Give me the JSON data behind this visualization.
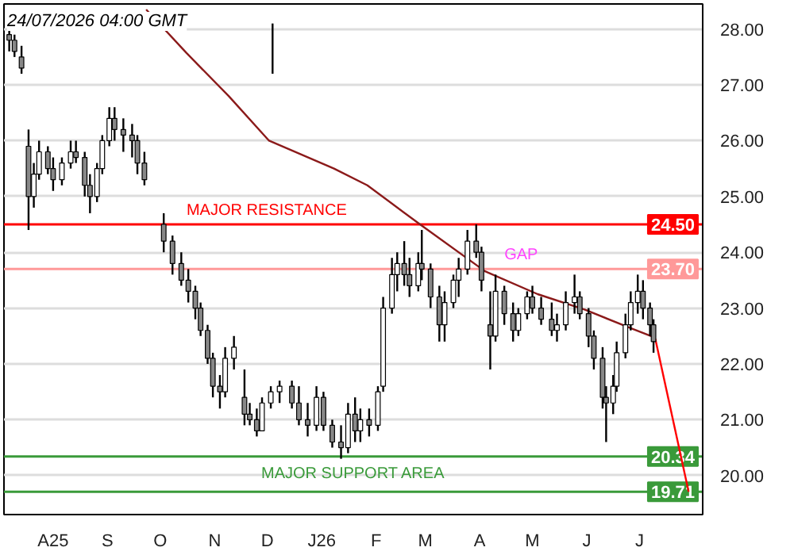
{
  "chart_data": {
    "type": "candlestick",
    "annotations": [
      "24/07/2026 04:00 GMT",
      {
        "text": "MAJOR RESISTANCE",
        "x": "2025-10-30",
        "y": 24.5
      },
      {
        "text": "GAP",
        "x": "2026-04-29",
        "y": 23.7
      },
      "MAJOR SUPPORT AREA"
    ],
    "x": [
      "2025-07-21",
      "2025-07-24",
      "2025-07-28",
      "2025-08-01",
      "2025-08-04",
      "2025-08-07",
      "2025-08-12",
      "2025-08-15",
      "2025-08-20",
      "2025-08-25",
      "2025-08-28",
      "2025-09-02",
      "2025-09-05",
      "2025-09-09",
      "2025-09-12",
      "2025-09-16",
      "2025-09-19",
      "2025-09-24",
      "2025-09-29",
      "2025-10-02",
      "2025-10-06",
      "2025-10-17",
      "2025-10-22",
      "2025-10-27",
      "2025-10-31",
      "2025-11-04",
      "2025-11-07",
      "2025-11-11",
      "2025-11-14",
      "2025-11-18",
      "2025-11-21",
      "2025-11-26",
      "2025-12-02",
      "2025-12-05",
      "2025-12-09",
      "2025-12-12",
      "2025-12-17",
      "2025-12-22",
      "2025-12-29",
      "2026-01-02",
      "2026-01-07",
      "2026-01-12",
      "2026-01-16",
      "2026-01-21",
      "2026-01-26",
      "2026-01-30",
      "2026-02-03",
      "2026-02-06",
      "2026-02-11",
      "2026-02-16",
      "2026-02-19",
      "2026-02-24",
      "2026-02-27",
      "2026-03-03",
      "2026-03-06",
      "2026-03-11",
      "2026-03-13",
      "2026-03-18",
      "2026-03-23",
      "2026-03-26",
      "2026-03-31",
      "2026-04-03",
      "2026-04-08",
      "2026-04-13",
      "2026-04-16",
      "2026-04-21",
      "2026-04-24",
      "2026-04-29",
      "2026-05-04",
      "2026-05-07",
      "2026-05-12",
      "2026-05-15",
      "2026-05-20",
      "2026-05-26",
      "2026-05-29",
      "2026-06-03",
      "2026-06-08",
      "2026-06-11",
      "2026-06-16",
      "2026-06-19",
      "2026-06-24",
      "2026-06-26",
      "2026-06-30",
      "2026-07-02",
      "2026-07-07",
      "2026-07-10",
      "2026-07-14",
      "2026-07-17",
      "2026-07-21",
      "2026-07-23"
    ],
    "ohlc": [
      [
        27.9,
        28.1,
        27.6,
        27.8
      ],
      [
        27.8,
        27.9,
        27.5,
        27.6
      ],
      [
        27.5,
        27.7,
        27.2,
        27.3
      ],
      [
        25.9,
        26.2,
        24.4,
        25.0
      ],
      [
        25.0,
        25.6,
        24.8,
        25.4
      ],
      [
        25.4,
        26.0,
        25.3,
        25.8
      ],
      [
        25.8,
        25.9,
        25.4,
        25.5
      ],
      [
        25.5,
        25.7,
        25.1,
        25.3
      ],
      [
        25.3,
        25.7,
        25.2,
        25.6
      ],
      [
        25.6,
        26.0,
        25.5,
        25.8
      ],
      [
        25.8,
        26.0,
        25.6,
        25.7
      ],
      [
        25.7,
        25.8,
        25.0,
        25.2
      ],
      [
        25.2,
        25.4,
        24.7,
        25.0
      ],
      [
        25.0,
        25.6,
        24.9,
        25.5
      ],
      [
        25.5,
        26.1,
        25.4,
        26.0
      ],
      [
        26.0,
        26.6,
        25.9,
        26.4
      ],
      [
        26.4,
        26.6,
        26.0,
        26.2
      ],
      [
        26.2,
        26.4,
        25.8,
        26.1
      ],
      [
        26.1,
        26.3,
        25.7,
        26.0
      ],
      [
        26.0,
        26.1,
        25.4,
        25.6
      ],
      [
        25.6,
        25.8,
        25.2,
        25.3
      ],
      [
        24.5,
        24.7,
        24.0,
        24.2
      ],
      [
        24.2,
        24.3,
        23.6,
        23.8
      ],
      [
        23.8,
        24.0,
        23.4,
        23.5
      ],
      [
        23.5,
        23.7,
        23.1,
        23.3
      ],
      [
        23.3,
        23.4,
        22.8,
        23.0
      ],
      [
        23.0,
        23.1,
        22.5,
        22.6
      ],
      [
        22.6,
        22.7,
        22.0,
        22.1
      ],
      [
        22.1,
        22.2,
        21.4,
        21.6
      ],
      [
        21.6,
        21.8,
        21.2,
        21.5
      ],
      [
        21.5,
        22.3,
        21.4,
        22.1
      ],
      [
        22.1,
        22.5,
        21.9,
        22.3
      ],
      [
        21.4,
        21.9,
        20.9,
        21.1
      ],
      [
        21.1,
        21.3,
        20.9,
        21.0
      ],
      [
        21.0,
        21.2,
        20.7,
        20.8
      ],
      [
        20.8,
        21.4,
        20.8,
        21.3
      ],
      [
        21.3,
        21.6,
        21.2,
        21.5
      ],
      [
        21.5,
        21.7,
        21.3,
        21.6
      ],
      [
        21.6,
        21.7,
        21.2,
        21.3
      ],
      [
        21.3,
        21.6,
        20.9,
        21.0
      ],
      [
        21.0,
        21.3,
        20.7,
        20.9
      ],
      [
        20.9,
        21.6,
        20.8,
        21.4
      ],
      [
        21.4,
        21.5,
        20.8,
        20.9
      ],
      [
        20.9,
        21.0,
        20.5,
        20.6
      ],
      [
        20.6,
        20.9,
        20.3,
        20.5
      ],
      [
        20.5,
        21.3,
        20.4,
        21.1
      ],
      [
        21.1,
        21.4,
        20.6,
        20.8
      ],
      [
        20.8,
        21.2,
        20.6,
        21.0
      ],
      [
        21.0,
        21.2,
        20.7,
        20.9
      ],
      [
        20.9,
        21.6,
        20.8,
        21.5
      ],
      [
        21.6,
        23.2,
        21.5,
        23.0
      ],
      [
        23.0,
        23.9,
        22.9,
        23.6
      ],
      [
        23.6,
        24.0,
        23.3,
        23.8
      ],
      [
        23.8,
        24.2,
        23.4,
        23.6
      ],
      [
        23.6,
        23.9,
        23.2,
        23.4
      ],
      [
        23.4,
        24.0,
        23.3,
        23.8
      ],
      [
        23.8,
        24.4,
        23.5,
        23.7
      ],
      [
        23.7,
        23.8,
        23.0,
        23.2
      ],
      [
        23.2,
        23.4,
        22.4,
        22.7
      ],
      [
        22.7,
        23.3,
        22.4,
        23.1
      ],
      [
        23.1,
        23.6,
        23.0,
        23.5
      ],
      [
        23.5,
        23.9,
        23.2,
        23.7
      ],
      [
        23.7,
        24.4,
        23.6,
        24.2
      ],
      [
        24.2,
        24.5,
        23.9,
        24.0
      ],
      [
        24.0,
        24.1,
        23.3,
        23.5
      ],
      [
        22.7,
        23.3,
        21.9,
        22.5
      ],
      [
        22.5,
        23.6,
        22.4,
        23.3
      ],
      [
        23.3,
        23.4,
        22.7,
        22.9
      ],
      [
        22.9,
        23.1,
        22.4,
        22.6
      ],
      [
        22.6,
        23.0,
        22.5,
        22.9
      ],
      [
        22.9,
        23.3,
        22.8,
        23.2
      ],
      [
        23.2,
        23.4,
        22.9,
        23.0
      ],
      [
        23.0,
        23.2,
        22.7,
        22.8
      ],
      [
        22.8,
        23.1,
        22.5,
        22.6
      ],
      [
        22.6,
        22.9,
        22.4,
        22.7
      ],
      [
        22.7,
        23.3,
        22.6,
        23.1
      ],
      [
        23.1,
        23.6,
        22.9,
        23.2
      ],
      [
        23.2,
        23.3,
        22.8,
        22.9
      ],
      [
        22.9,
        23.0,
        22.3,
        22.5
      ],
      [
        22.5,
        22.6,
        21.9,
        22.1
      ],
      [
        22.1,
        22.3,
        21.2,
        21.4
      ],
      [
        21.4,
        21.6,
        20.6,
        21.3
      ],
      [
        21.3,
        21.8,
        21.1,
        21.6
      ],
      [
        21.6,
        22.4,
        21.5,
        22.2
      ],
      [
        22.2,
        22.9,
        22.1,
        22.7
      ],
      [
        22.7,
        23.3,
        22.6,
        23.1
      ],
      [
        23.1,
        23.6,
        22.9,
        23.3
      ],
      [
        23.3,
        23.5,
        22.8,
        23.0
      ],
      [
        23.0,
        23.1,
        22.5,
        22.7
      ],
      [
        22.7,
        22.8,
        22.2,
        22.4
      ]
    ],
    "color": "#000000",
    "series": [
      {
        "type": "line",
        "color": "#8b1a1a",
        "x": [
          "2025-10-07",
          "2025-10-30",
          "2025-11-23",
          "2025-12-16",
          "2026-01-22",
          "2026-02-10",
          "2026-03-12",
          "2026-04-18",
          "2026-05-18",
          "2026-06-14",
          "2026-07-10",
          "2026-07-23"
        ],
        "values": [
          28.35,
          27.57,
          26.8,
          26.0,
          25.5,
          25.2,
          24.5,
          23.66,
          23.25,
          22.97,
          22.64,
          22.48
        ]
      },
      {
        "type": "line",
        "color": "#000000",
        "x": [
          "2025-12-18",
          "2025-12-18"
        ],
        "values": [
          28.1,
          27.2
        ]
      },
      {
        "type": "line",
        "color": "#ff0000",
        "x": [
          "2026-07-24",
          "2026-08-12"
        ],
        "values": [
          22.45,
          19.71
        ]
      }
    ],
    "ref_lines": [
      {
        "axis": "y",
        "value": 24.5,
        "label": "24.50",
        "color": "#ff0000"
      },
      {
        "axis": "y",
        "value": 23.7,
        "label": "23.70",
        "color": "#ff9999"
      },
      {
        "axis": "y",
        "value": 20.34,
        "label": "20.34",
        "color": "#3a9a3a"
      },
      {
        "axis": "y",
        "value": 19.71,
        "label": "19.71",
        "color": "#3a9a3a"
      }
    ],
    "xlim": [
      "2025-07-18",
      "2026-08-20"
    ],
    "xticks": [
      {
        "value": "2025-08-15",
        "label": "A25"
      },
      {
        "value": "2025-09-15",
        "label": "S"
      },
      {
        "value": "2025-10-15",
        "label": "O"
      },
      {
        "value": "2025-11-15",
        "label": "N"
      },
      {
        "value": "2025-12-15",
        "label": "D"
      },
      {
        "value": "2026-01-15",
        "label": "J26"
      },
      {
        "value": "2026-02-15",
        "label": "F"
      },
      {
        "value": "2026-03-15",
        "label": "M"
      },
      {
        "value": "2026-04-15",
        "label": "A"
      },
      {
        "value": "2026-05-15",
        "label": "M"
      },
      {
        "value": "2026-06-15",
        "label": "J"
      },
      {
        "value": "2026-07-15",
        "label": "J"
      }
    ],
    "ylim": [
      19.3,
      28.45
    ],
    "yticks": [
      {
        "value": 20,
        "label": "20.00"
      },
      {
        "value": 21,
        "label": "21.00"
      },
      {
        "value": 22,
        "label": "22.00"
      },
      {
        "value": 23,
        "label": "23.00"
      },
      {
        "value": 24,
        "label": "24.00"
      },
      {
        "value": 25,
        "label": "25.00"
      },
      {
        "value": 26,
        "label": "26.00"
      },
      {
        "value": 27,
        "label": "27.00"
      },
      {
        "value": 28,
        "label": "28.00"
      }
    ],
    "grid": "y"
  }
}
